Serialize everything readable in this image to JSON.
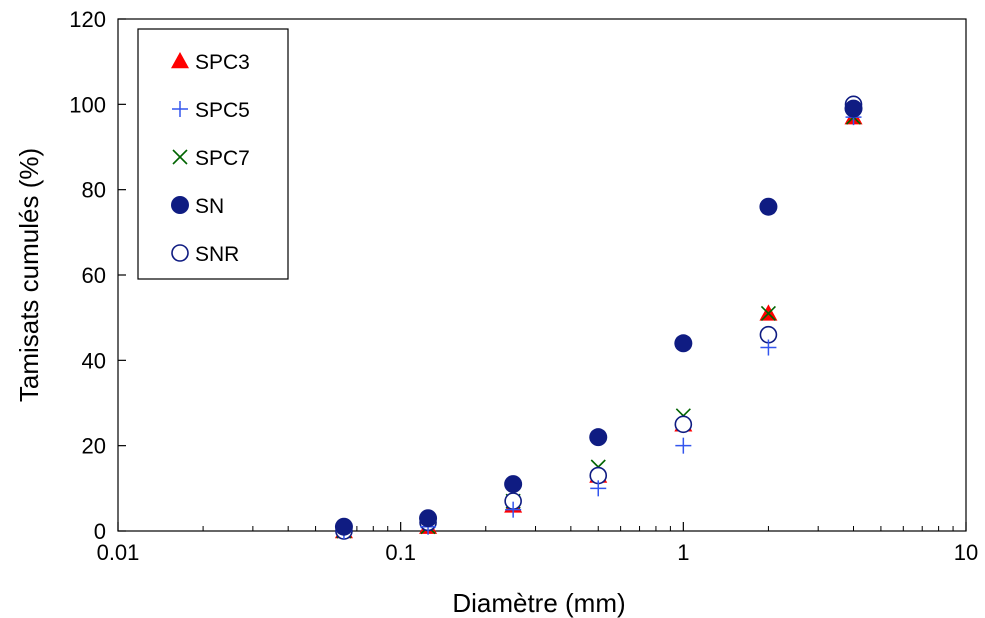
{
  "chart_data": {
    "type": "scatter",
    "title": "",
    "xlabel": "Diamètre (mm)",
    "ylabel": "Tamisats cumulés  (%)",
    "xscale": "log",
    "xlim": [
      0.01,
      10
    ],
    "ylim": [
      0,
      120
    ],
    "x_ticks": [
      0.01,
      0.1,
      1,
      10
    ],
    "x_tick_labels": [
      "0.01",
      "0.1",
      "1",
      "10"
    ],
    "y_ticks": [
      0,
      20,
      40,
      60,
      80,
      100,
      120
    ],
    "y_tick_labels": [
      "0",
      "20",
      "40",
      "60",
      "80",
      "100",
      "120"
    ],
    "grid": false,
    "legend_position": "top-left",
    "x": [
      0.063,
      0.125,
      0.25,
      0.5,
      1,
      2,
      4
    ],
    "series": [
      {
        "name": "SPC3",
        "marker": "filled-triangle",
        "color": "#ff0000",
        "values": [
          0,
          1,
          6,
          13,
          25,
          51,
          97
        ]
      },
      {
        "name": "SPC5",
        "marker": "plus",
        "color": "#3355ee",
        "values": [
          0,
          1,
          5,
          10,
          20,
          43,
          97
        ]
      },
      {
        "name": "SPC7",
        "marker": "x",
        "color": "#006400",
        "values": [
          0,
          1,
          7,
          15,
          27,
          51,
          97
        ]
      },
      {
        "name": "SN",
        "marker": "filled-circle",
        "color": "#0f1c82",
        "values": [
          1,
          3,
          11,
          22,
          44,
          76,
          99
        ]
      },
      {
        "name": "SNR",
        "marker": "open-circle",
        "color": "#0f1c82",
        "values": [
          0,
          2,
          7,
          13,
          25,
          46,
          100
        ]
      }
    ]
  }
}
